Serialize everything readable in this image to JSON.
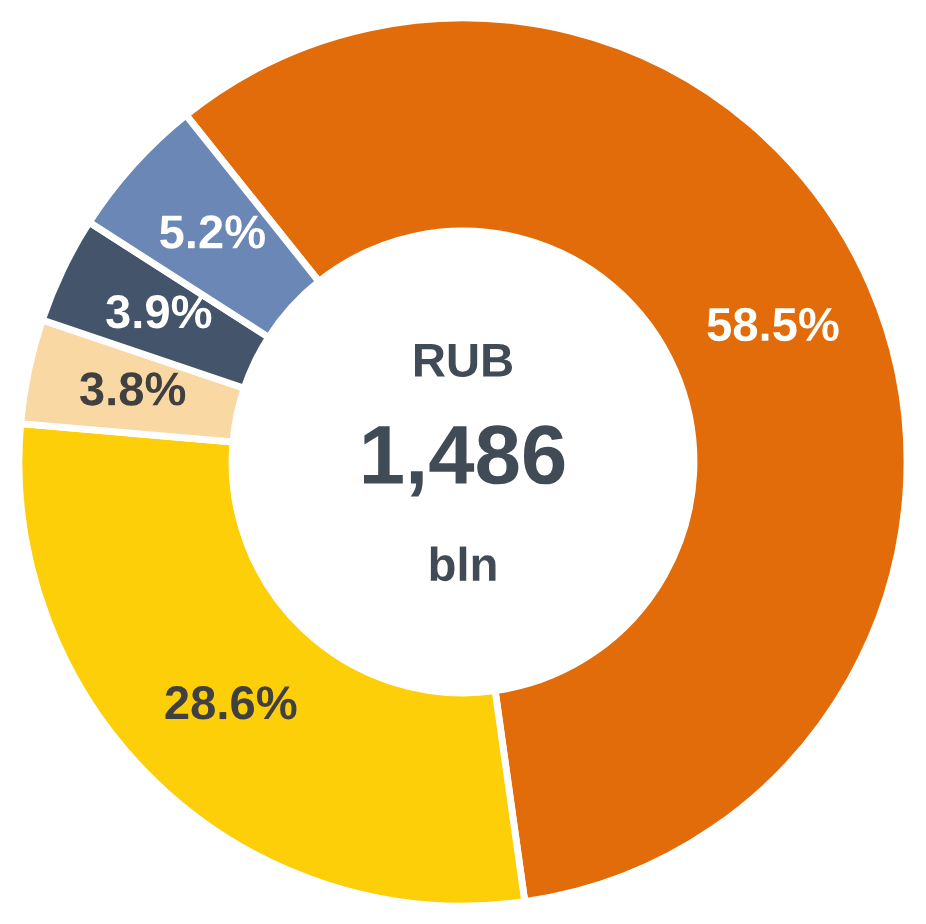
{
  "chart_data": {
    "type": "donut",
    "categories": [
      null,
      null,
      null,
      null,
      null
    ],
    "values": [
      58.5,
      28.6,
      3.8,
      3.9,
      5.2
    ],
    "colors": [
      "#e36c0a",
      "#fccf08",
      "#f9d8a4",
      "#44546a",
      "#6a87b5"
    ],
    "value_labels": [
      "58.5%",
      "28.6%",
      "3.8%",
      "3.9%",
      "5.2%"
    ],
    "annotations": [
      "RUB",
      "1,486",
      "bln"
    ],
    "legend": false
  }
}
